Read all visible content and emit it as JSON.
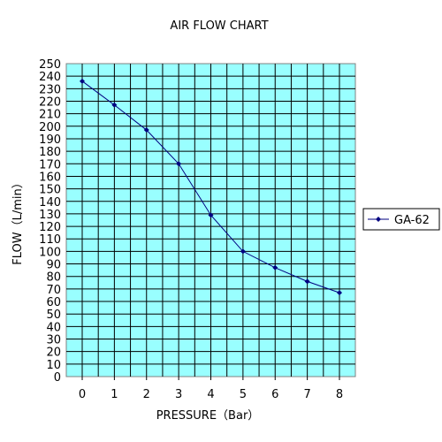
{
  "chart_data": {
    "type": "line",
    "title": "AIR FLOW CHART",
    "xlabel": "PRESSURE（Bar）",
    "ylabel": "FLOW（L/min）",
    "x": [
      0,
      1,
      2,
      3,
      4,
      5,
      6,
      7,
      8
    ],
    "xlim": [
      0,
      8
    ],
    "ylim": [
      0,
      250
    ],
    "x_ticks": [
      0,
      1,
      2,
      3,
      4,
      5,
      6,
      7,
      8
    ],
    "y_ticks": [
      0,
      10,
      20,
      30,
      40,
      50,
      60,
      70,
      80,
      90,
      100,
      110,
      120,
      130,
      140,
      150,
      160,
      170,
      180,
      190,
      200,
      210,
      220,
      230,
      240,
      250
    ],
    "grid": true,
    "legend_position": "right",
    "plot_background": "#99ffff",
    "series": [
      {
        "name": "GA-62",
        "color": "#000080",
        "marker": "diamond",
        "values": [
          236,
          217,
          197,
          170,
          129,
          100,
          87,
          76,
          67
        ]
      }
    ]
  }
}
